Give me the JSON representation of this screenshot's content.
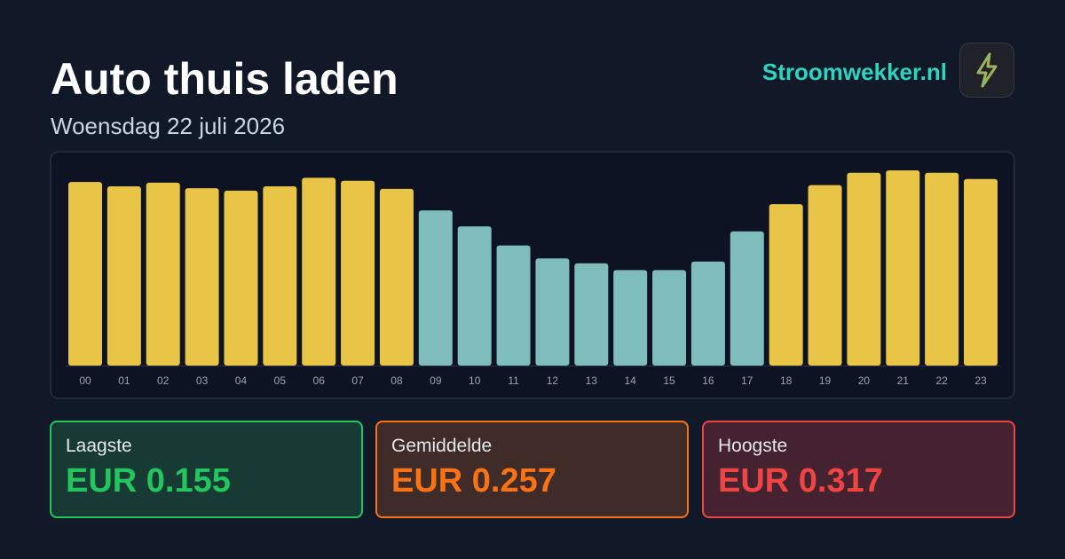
{
  "header": {
    "title": "Auto thuis laden",
    "subtitle": "Woensdag 22 juli 2026",
    "brand": "Stroomwekker.nl"
  },
  "chart_data": {
    "type": "bar",
    "categories": [
      "00",
      "01",
      "02",
      "03",
      "04",
      "05",
      "06",
      "07",
      "08",
      "09",
      "10",
      "11",
      "12",
      "13",
      "14",
      "15",
      "16",
      "17",
      "18",
      "19",
      "20",
      "21",
      "22",
      "23"
    ],
    "values": [
      0.298,
      0.291,
      0.297,
      0.288,
      0.284,
      0.291,
      0.305,
      0.3,
      0.287,
      0.252,
      0.226,
      0.195,
      0.174,
      0.166,
      0.155,
      0.155,
      0.169,
      0.218,
      0.262,
      0.293,
      0.313,
      0.317,
      0.313,
      0.303
    ],
    "colors": [
      "#e8c547",
      "#e8c547",
      "#e8c547",
      "#e8c547",
      "#e8c547",
      "#e8c547",
      "#e8c547",
      "#e8c547",
      "#e8c547",
      "#7fbcbc",
      "#7fbcbc",
      "#7fbcbc",
      "#7fbcbc",
      "#7fbcbc",
      "#7fbcbc",
      "#7fbcbc",
      "#7fbcbc",
      "#7fbcbc",
      "#e8c547",
      "#e8c547",
      "#e8c547",
      "#e8c547",
      "#e8c547",
      "#e8c547"
    ]
  },
  "stats": [
    {
      "label": "Laagste",
      "value": "EUR 0.155"
    },
    {
      "label": "Gemiddelde",
      "value": "EUR 0.257"
    },
    {
      "label": "Hoogste",
      "value": "EUR 0.317"
    }
  ]
}
